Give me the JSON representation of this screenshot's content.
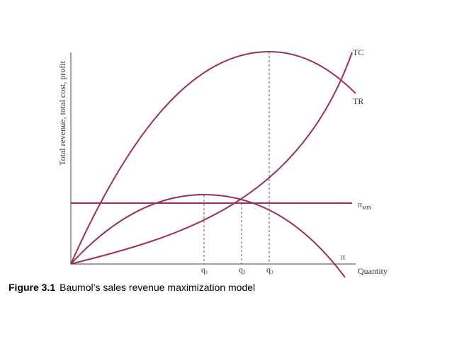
{
  "figure": {
    "y_axis_label": "Total revenue, total cost, profit",
    "x_axis_label": "Quantity",
    "curves": {
      "tc": "TC",
      "tr": "TR",
      "profit": "π"
    },
    "profit_min": {
      "symbol": "π",
      "subscript": "MIN"
    },
    "quantities": [
      {
        "base": "q",
        "sub": "1"
      },
      {
        "base": "q",
        "sub": "2"
      },
      {
        "base": "q",
        "sub": "3"
      }
    ],
    "caption": {
      "number": "Figure 3.1",
      "text": "Baumol’s sales revenue maximization model"
    }
  }
}
